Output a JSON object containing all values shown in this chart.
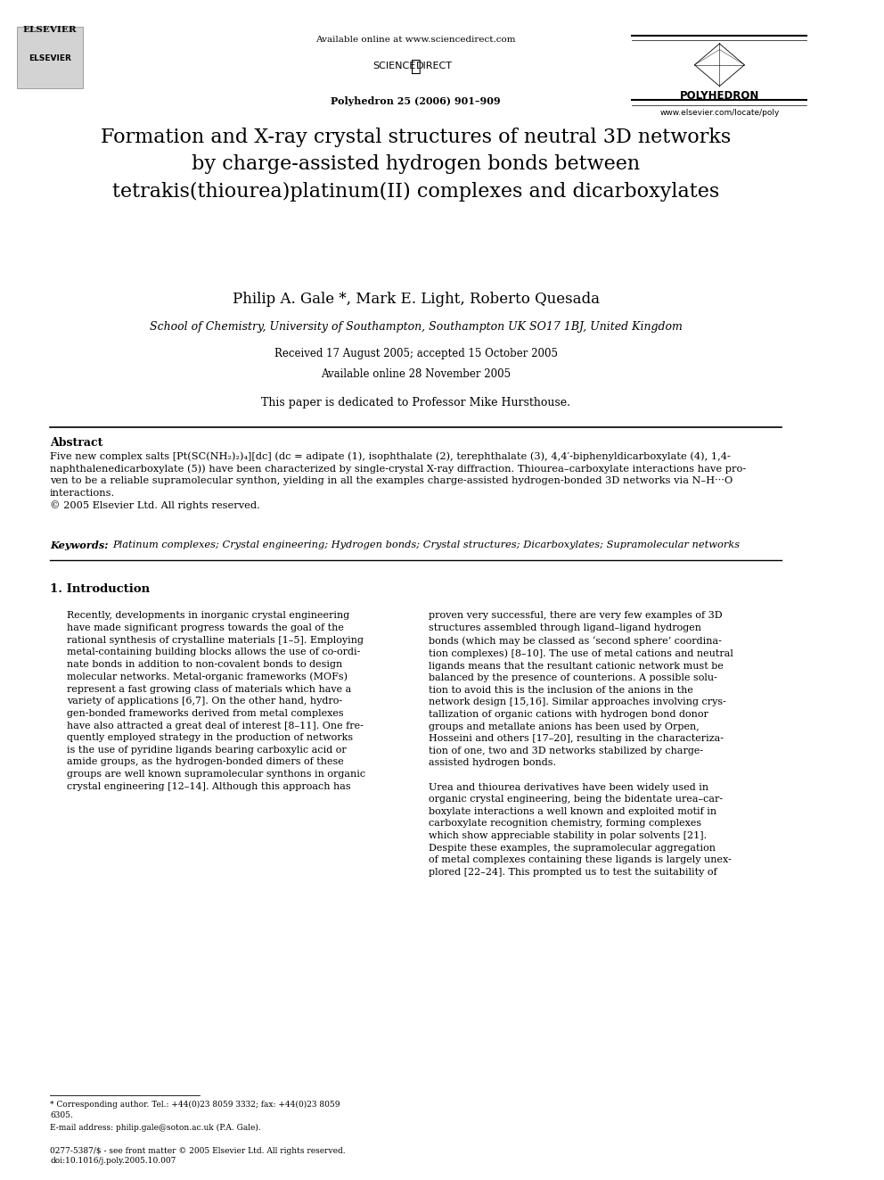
{
  "page_width": 9.92,
  "page_height": 13.23,
  "bg_color": "#ffffff",
  "header": {
    "available_online": "Available online at www.sciencedirect.com",
    "journal_info": "Polyhedron 25 (2006) 901–909",
    "journal_name": "POLYHEDRON",
    "journal_url": "www.elsevier.com/locate/poly"
  },
  "title": "Formation and X-ray crystal structures of neutral 3D networks\nby charge-assisted hydrogen bonds between\ntetrakis(thiourea)platinum(II) complexes and dicarboxylates",
  "authors": "Philip A. Gale *, Mark E. Light, Roberto Quesada",
  "affiliation": "School of Chemistry, University of Southampton, Southampton UK SO17 1BJ, United Kingdom",
  "received": "Received 17 August 2005; accepted 15 October 2005",
  "available": "Available online 28 November 2005",
  "dedication": "This paper is dedicated to Professor Mike Hursthouse.",
  "abstract_title": "Abstract",
  "abstract_text": "Five new complex salts [Pt(SC(NH₂)₂)₄][dc] (dc = adipate (1), isophthalate (2), terephthalate (3), 4,4′-biphenyldicarboxylate (4), 1,4-\nnaphthalenedicarboxylate (5)) have been characterized by single-crystal X-ray diffraction. Thiourea–carboxylate interactions have pro-\nven to be a reliable supramolecular synthon, yielding in all the examples charge-assisted hydrogen-bonded 3D networks via N–H···O\ninteractions.\n© 2005 Elsevier Ltd. All rights reserved.",
  "keywords_label": "Keywords:",
  "keywords_text": "Platinum complexes; Crystal engineering; Hydrogen bonds; Crystal structures; Dicarboxylates; Supramolecular networks",
  "section1_title": "1. Introduction",
  "section1_col1": "Recently, developments in inorganic crystal engineering\nhave made significant progress towards the goal of the\nrational synthesis of crystalline materials [1–5]. Employing\nmetal-containing building blocks allows the use of co-ordi-\nnate bonds in addition to non-covalent bonds to design\nmolecular networks. Metal-organic frameworks (MOFs)\nrepresent a fast growing class of materials which have a\nvariety of applications [6,7]. On the other hand, hydro-\ngen-bonded frameworks derived from metal complexes\nhave also attracted a great deal of interest [8–11]. One fre-\nquently employed strategy in the production of networks\nis the use of pyridine ligands bearing carboxylic acid or\namide groups, as the hydrogen-bonded dimers of these\ngroups are well known supramolecular synthons in organic\ncrystal engineering [12–14]. Although this approach has",
  "section1_col2": "proven very successful, there are very few examples of 3D\nstructures assembled through ligand–ligand hydrogen\nbonds (which may be classed as ‘second sphere’ coordina-\ntion complexes) [8–10]. The use of metal cations and neutral\nligands means that the resultant cationic network must be\nbalanced by the presence of counterions. A possible solu-\ntion to avoid this is the inclusion of the anions in the\nnetwork design [15,16]. Similar approaches involving crys-\ntallization of organic cations with hydrogen bond donor\ngroups and metallate anions has been used by Orpen,\nHosseini and others [17–20], resulting in the characteriza-\ntion of one, two and 3D networks stabilized by charge-\nassisted hydrogen bonds.\n\nUrea and thiourea derivatives have been widely used in\norganic crystal engineering, being the bidentate urea–car-\nboxylate interactions a well known and exploited motif in\ncarboxylate recognition chemistry, forming complexes\nwhich show appreciable stability in polar solvents [21].\nDespite these examples, the supramolecular aggregation\nof metal complexes containing these ligands is largely unex-\nplored [22–24]. This prompted us to test the suitability of",
  "footnote1": "* Corresponding author. Tel.: +44(0)23 8059 3332; fax: +44(0)23 8059\n6305.",
  "footnote2": "E-mail address: philip.gale@soton.ac.uk (P.A. Gale).",
  "footer": "0277-5387/$ - see front matter © 2005 Elsevier Ltd. All rights reserved.\ndoi:10.1016/j.poly.2005.10.007"
}
